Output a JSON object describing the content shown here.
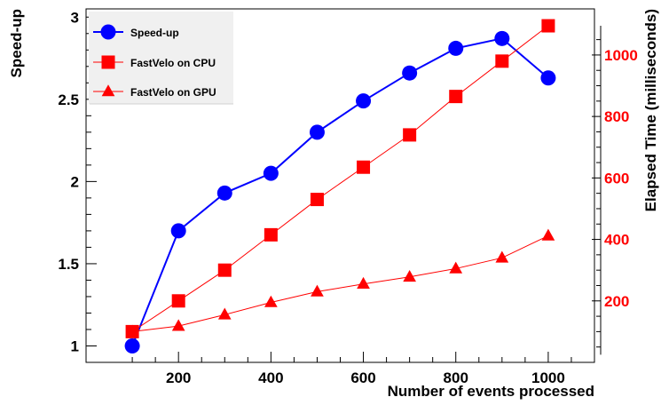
{
  "chart_data": {
    "type": "line",
    "title": "",
    "xlabel": "Number of events processed",
    "ylabel_left": "Speed-up",
    "ylabel_right": "Elapsed Time (milliseconds)",
    "xlim": [
      0,
      1100
    ],
    "ylim_left": [
      0.9,
      3.05
    ],
    "ylim_right": [
      0,
      1150
    ],
    "x_ticks": [
      200,
      400,
      600,
      800,
      1000
    ],
    "x_tick_labels": [
      "200",
      "400",
      "600",
      "800",
      "1000"
    ],
    "y_left_ticks": [
      1,
      1.5,
      2,
      2.5,
      3
    ],
    "y_left_tick_labels": [
      "1",
      "1.5",
      "2",
      "2.5",
      "3"
    ],
    "y_right_ticks": [
      200,
      400,
      600,
      800,
      1000
    ],
    "y_right_tick_labels": [
      "200",
      "400",
      "600",
      "800",
      "1000"
    ],
    "legend_position": "top-left",
    "grid": false,
    "series": [
      {
        "name": "Speed-up",
        "axis": "left",
        "color": "#0000ff",
        "marker": "circle",
        "x": [
          100,
          200,
          300,
          400,
          500,
          600,
          700,
          800,
          900,
          1000
        ],
        "values": [
          1.0,
          1.7,
          1.93,
          2.05,
          2.3,
          2.49,
          2.66,
          2.81,
          2.87,
          2.63
        ]
      },
      {
        "name": "FastVelo on CPU",
        "axis": "right",
        "color": "#ff0000",
        "marker": "square",
        "x": [
          100,
          200,
          300,
          400,
          500,
          600,
          700,
          800,
          900,
          1000
        ],
        "values": [
          100,
          200,
          300,
          415,
          530,
          635,
          740,
          865,
          980,
          1095
        ]
      },
      {
        "name": "FastVelo on GPU",
        "axis": "right",
        "color": "#ff0000",
        "marker": "triangle",
        "x": [
          100,
          200,
          300,
          400,
          500,
          600,
          700,
          800,
          900,
          1000
        ],
        "values": [
          100,
          118,
          155,
          195,
          230,
          255,
          278,
          305,
          340,
          412
        ]
      }
    ]
  }
}
